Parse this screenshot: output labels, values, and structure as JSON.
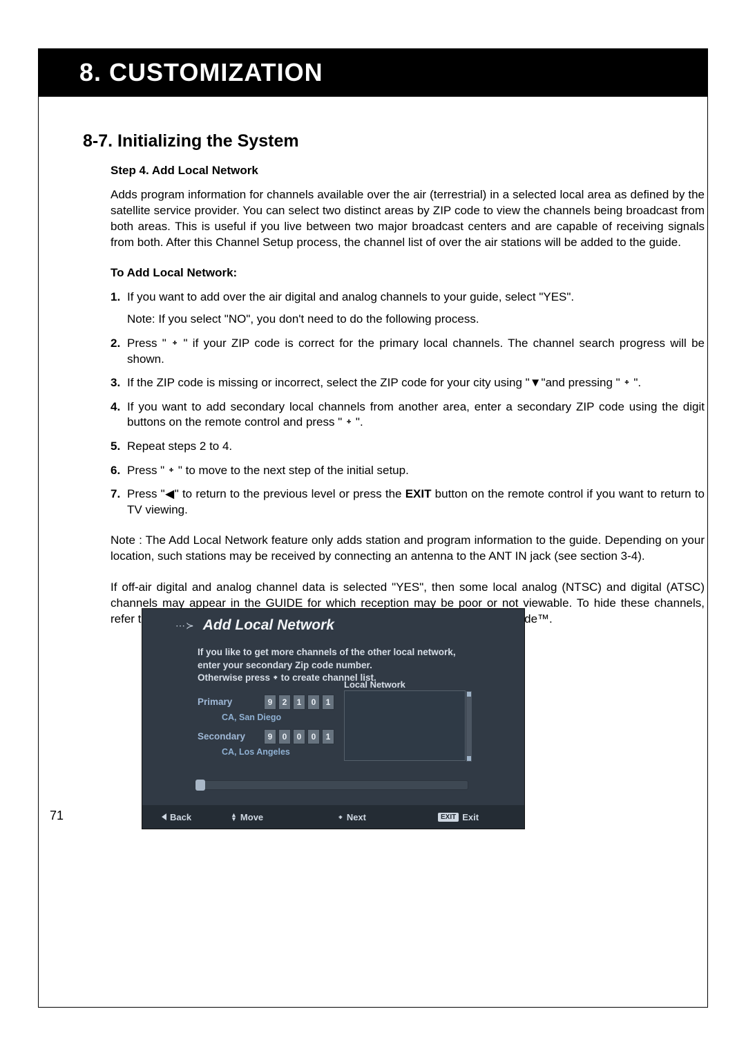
{
  "chapter": {
    "title": "8. CUSTOMIZATION"
  },
  "section": {
    "title": "8-7. Initializing the System"
  },
  "step": {
    "title": "Step 4. Add Local Network"
  },
  "intro": "Adds program information for channels available over the air (terrestrial) in a selected local area as defined by the satellite service provider. You can select two distinct areas by ZIP code to view the channels being broadcast from both areas. This is useful if you live between two major broadcast centers and are capable of receiving signals from both. After this Channel Setup process, the channel list of over the air stations will be added to the guide.",
  "subheading": "To Add Local Network:",
  "steps": {
    "s1": "If you want to add over the air digital and analog channels to your guide, select \"YES\".",
    "s1_note": "Note:  If you select \"NO\", you don't need to do the following process.",
    "s2": "Press \" ᛭ \" if your ZIP code is correct for the primary local channels. The channel search progress will be shown.",
    "s3": "If the ZIP code is missing or incorrect, select the ZIP code for your city using \"▼\"and pressing \" ᛭ \".",
    "s4": "If you want to add secondary local channels from another area, enter a secondary ZIP code using the digit buttons on the remote control and press \" ᛭ \".",
    "s5": "Repeat steps 2 to 4.",
    "s6": "Press \" ᛭ \" to move to the next step of the initial setup.",
    "s7a": "Press \"◀\" to return to the previous level or press the ",
    "s7b_bold": "EXIT",
    "s7c": " button on the remote control if you want to return to TV viewing."
  },
  "note1": "Note : The Add Local Network feature only adds station and program information to the guide. Depending on your location, such stations may be received by connecting an antenna to the ANT IN jack (see section 3-4).",
  "note2": "If off-air digital and analog channel data is selected \"YES\", then some local analog (NTSC) and digital (ATSC) channels may appear in the GUIDE for which reception may be poor or not viewable. To hide these channels, refer to section 8-8 Managing Channels and section 7-2 Advanced Program Guide™.",
  "page_number": "71",
  "tv": {
    "title_prefix": "⋯≻",
    "title": "Add Local Network",
    "instr_l1": "If you like to get more channels of the other local network,",
    "instr_l2": "enter your secondary Zip code number.",
    "instr_l3": "Otherwise press ᛭ to create channel list.",
    "ln_header": "Local Network",
    "primary_label": "Primary",
    "primary_zip": [
      "9",
      "2",
      "1",
      "0",
      "1"
    ],
    "primary_city": "CA, San Diego",
    "secondary_label": "Secondary",
    "secondary_zip": [
      "9",
      "0",
      "0",
      "0",
      "1"
    ],
    "secondary_city": "CA, Los Angeles",
    "footer": {
      "back": "Back",
      "move": "Move",
      "next": "Next",
      "exit_badge": "EXIT",
      "exit": "Exit"
    },
    "colors": {
      "panel_bg": "#313a45",
      "footer_bg": "#242c34",
      "text": "#d8dfe8",
      "accent": "#9fb8d6"
    }
  }
}
